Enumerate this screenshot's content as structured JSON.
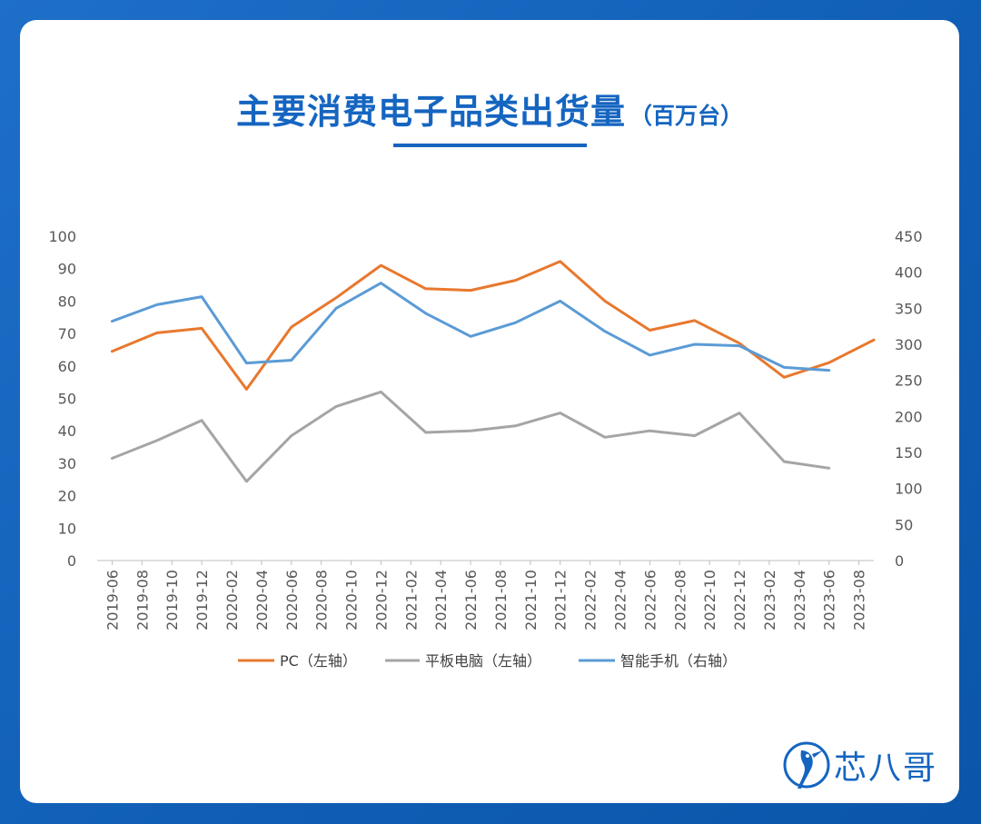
{
  "title": {
    "main": "主要消费电子品类出货量",
    "unit": "（百万台）"
  },
  "logo": {
    "text": "芯八哥",
    "icon": "kingfisher-logo-icon"
  },
  "colors": {
    "background": "#1565c0",
    "pc": "#e8782e",
    "tablet": "#a5a5a5",
    "phone": "#5b9bd5",
    "title": "#1565c0"
  },
  "chart_data": {
    "type": "line",
    "categories": [
      "2019-06",
      "2019-08",
      "2019-10",
      "2019-12",
      "2020-02",
      "2020-04",
      "2020-06",
      "2020-08",
      "2020-10",
      "2020-12",
      "2021-02",
      "2021-04",
      "2021-06",
      "2021-08",
      "2021-10",
      "2021-12",
      "2022-02",
      "2022-04",
      "2022-06",
      "2022-08",
      "2022-10",
      "2022-12",
      "2023-02",
      "2023-04",
      "2023-06",
      "2023-08"
    ],
    "x": [
      "2019-06",
      "2019-09",
      "2019-12",
      "2020-03",
      "2020-06",
      "2020-09",
      "2020-12",
      "2021-03",
      "2021-06",
      "2021-09",
      "2021-12",
      "2022-03",
      "2022-06",
      "2022-09",
      "2022-12",
      "2023-03",
      "2023-06",
      "2023-09"
    ],
    "ylim_left": [
      0,
      100
    ],
    "ylim_right": [
      0,
      450
    ],
    "yticks_left": [
      "100",
      "90",
      "80",
      "70",
      "60",
      "50",
      "40",
      "30",
      "20",
      "10",
      "0"
    ],
    "yticks_right": [
      "450",
      "400",
      "350",
      "300",
      "250",
      "200",
      "150",
      "100",
      "50",
      "0"
    ],
    "grid": false,
    "legend_position": "bottom",
    "series": [
      {
        "name": "PC（左轴）",
        "axis": "left",
        "values": [
          64.5,
          70.2,
          71.6,
          52.8,
          72.0,
          81.0,
          91.0,
          83.8,
          83.3,
          86.4,
          92.2,
          80.0,
          71.0,
          74.0,
          67.0,
          56.5,
          61.0,
          68.0
        ]
      },
      {
        "name": "平板电脑（左轴）",
        "axis": "left",
        "values": [
          31.5,
          37.0,
          43.2,
          24.4,
          38.5,
          47.5,
          52.0,
          39.5,
          40.0,
          41.5,
          45.5,
          38.0,
          40.0,
          38.5,
          45.5,
          30.5,
          28.5,
          null
        ]
      },
      {
        "name": "智能手机（右轴）",
        "axis": "right",
        "values": [
          332,
          355,
          366,
          274,
          278,
          350,
          385,
          343,
          311,
          330,
          360,
          318,
          285,
          300,
          298,
          268,
          264,
          null
        ]
      }
    ]
  }
}
